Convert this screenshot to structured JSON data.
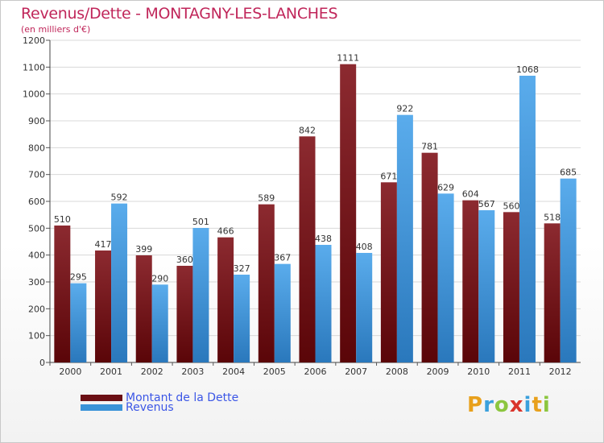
{
  "chart_data": {
    "type": "bar",
    "title": "Revenus/Dette - MONTAGNY-LES-LANCHES",
    "subtitle": "(en milliers d'€)",
    "categories": [
      "2000",
      "2001",
      "2002",
      "2003",
      "2004",
      "2005",
      "2006",
      "2007",
      "2008",
      "2009",
      "2010",
      "2011",
      "2012"
    ],
    "series": [
      {
        "name": "Montant de la Dette",
        "color": "#6b0f14",
        "values": [
          510,
          417,
          399,
          360,
          466,
          589,
          842,
          1111,
          671,
          781,
          604,
          560,
          518
        ]
      },
      {
        "name": "Revenus",
        "color": "#3a93d8",
        "values": [
          295,
          592,
          290,
          501,
          327,
          367,
          438,
          408,
          922,
          629,
          567,
          1068,
          685
        ]
      }
    ],
    "ylim": [
      0,
      1200
    ],
    "yticks": [
      0,
      100,
      200,
      300,
      400,
      500,
      600,
      700,
      800,
      900,
      1000,
      1100,
      1200
    ],
    "grid": true,
    "legend_position": "bottom-left"
  },
  "logo": {
    "letters": [
      "P",
      "r",
      "o",
      "x",
      "i",
      "t",
      "i"
    ],
    "colors": [
      "#e8a01c",
      "#3aa0dc",
      "#8cc63f",
      "#d9342b",
      "#3aa0dc",
      "#e8a01c",
      "#8cc63f"
    ]
  }
}
